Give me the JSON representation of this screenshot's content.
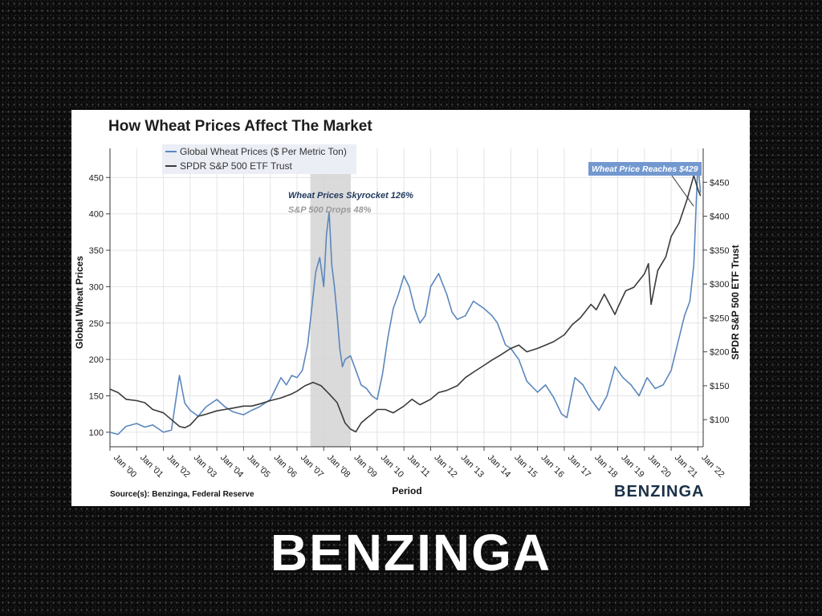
{
  "brand": {
    "footer_logo": "BENZINGA",
    "chart_logo": "BENZINGA"
  },
  "colors": {
    "wheat": "#5b87bd",
    "spy": "#3a3a3a",
    "shade": "#d3d3d3",
    "callout": "#7398cf"
  },
  "chart_data": {
    "type": "line",
    "title": "How Wheat Prices Affect The Market",
    "source": "Source(s): Benzinga, Federal Reserve",
    "xlabel": "Period",
    "ylabel_left": "Global Wheat Prices",
    "ylabel_right": "SPDR S&P 500 ETF Trust",
    "x_ticks": [
      "Jan '00",
      "Jan '01",
      "Jan '02",
      "Jan '03",
      "Jan '04",
      "Jan '05",
      "Jan '06",
      "Jan '07",
      "Jan '08",
      "Jan '09",
      "Jan '10",
      "Jan '11",
      "Jan '12",
      "Jan '13",
      "Jan '14",
      "Jan '15",
      "Jan '16",
      "Jan '17",
      "Jan '18",
      "Jan '19",
      "Jan '20",
      "Jan '21",
      "Jan '22"
    ],
    "y_left_ticks": [
      "100",
      "150",
      "200",
      "250",
      "300",
      "350",
      "400",
      "450"
    ],
    "y_right_ticks": [
      "$100",
      "$150",
      "$200",
      "$250",
      "$300",
      "$350",
      "$400",
      "$450"
    ],
    "y_left_range": [
      80,
      490
    ],
    "y_right_range": [
      60,
      500
    ],
    "x_range": [
      2000.0,
      2022.2
    ],
    "grid": true,
    "legend_position": "top-left",
    "shaded_period": [
      2007.5,
      2009.0
    ],
    "annotations": {
      "skyrocket": "Wheat Prices Skyrocket 126%",
      "drops": "S&P 500 Drops 48%",
      "callout": "Wheat Price Reaches $429"
    },
    "series": [
      {
        "name": "Global Wheat Prices ($ Per Metric Ton)",
        "axis": "left",
        "x": [
          2000,
          2000.3,
          2000.6,
          2001,
          2001.3,
          2001.6,
          2002,
          2002.3,
          2002.6,
          2002.8,
          2003,
          2003.3,
          2003.6,
          2004,
          2004.3,
          2004.6,
          2005,
          2005.3,
          2005.6,
          2006,
          2006.2,
          2006.4,
          2006.6,
          2006.8,
          2007,
          2007.2,
          2007.4,
          2007.55,
          2007.7,
          2007.85,
          2008,
          2008.1,
          2008.2,
          2008.3,
          2008.4,
          2008.5,
          2008.6,
          2008.7,
          2008.8,
          2009,
          2009.2,
          2009.4,
          2009.6,
          2009.8,
          2010,
          2010.2,
          2010.4,
          2010.6,
          2010.8,
          2011,
          2011.2,
          2011.4,
          2011.6,
          2011.8,
          2012,
          2012.3,
          2012.6,
          2012.8,
          2013,
          2013.3,
          2013.6,
          2014,
          2014.3,
          2014.5,
          2014.8,
          2015,
          2015.3,
          2015.6,
          2016,
          2016.3,
          2016.6,
          2016.9,
          2017.1,
          2017.4,
          2017.7,
          2018,
          2018.3,
          2018.6,
          2018.9,
          2019.2,
          2019.5,
          2019.8,
          2020.1,
          2020.4,
          2020.7,
          2021,
          2021.3,
          2021.5,
          2021.7,
          2021.85,
          2022,
          2022.1
        ],
        "values": [
          100,
          97,
          108,
          112,
          107,
          110,
          100,
          103,
          178,
          140,
          130,
          122,
          135,
          145,
          135,
          128,
          124,
          130,
          135,
          145,
          160,
          175,
          165,
          178,
          175,
          185,
          220,
          270,
          320,
          340,
          300,
          370,
          403,
          330,
          300,
          260,
          215,
          190,
          200,
          205,
          185,
          165,
          160,
          150,
          145,
          180,
          230,
          270,
          290,
          315,
          300,
          270,
          250,
          260,
          300,
          318,
          290,
          265,
          255,
          260,
          280,
          270,
          260,
          250,
          220,
          215,
          200,
          170,
          155,
          165,
          148,
          125,
          120,
          175,
          165,
          145,
          130,
          150,
          190,
          175,
          165,
          150,
          175,
          160,
          165,
          185,
          230,
          260,
          280,
          330,
          470,
          429
        ],
        "color": "#5b87bd"
      },
      {
        "name": "SPDR S&P 500 ETF Trust",
        "axis": "right",
        "x": [
          2000,
          2000.3,
          2000.6,
          2001,
          2001.3,
          2001.6,
          2002,
          2002.3,
          2002.6,
          2002.8,
          2003,
          2003.3,
          2003.6,
          2004,
          2004.3,
          2004.6,
          2005,
          2005.3,
          2005.6,
          2006,
          2006.4,
          2006.8,
          2007,
          2007.3,
          2007.6,
          2007.9,
          2008.2,
          2008.5,
          2008.8,
          2009,
          2009.2,
          2009.4,
          2009.6,
          2009.8,
          2010,
          2010.3,
          2010.6,
          2011,
          2011.3,
          2011.6,
          2012,
          2012.3,
          2012.6,
          2013,
          2013.3,
          2013.6,
          2014,
          2014.3,
          2014.6,
          2015,
          2015.3,
          2015.6,
          2016,
          2016.3,
          2016.6,
          2017,
          2017.3,
          2017.6,
          2018,
          2018.2,
          2018.5,
          2018.9,
          2019,
          2019.3,
          2019.6,
          2020,
          2020.15,
          2020.25,
          2020.5,
          2020.8,
          2021,
          2021.3,
          2021.6,
          2021.85,
          2022,
          2022.1
        ],
        "values": [
          145,
          140,
          130,
          128,
          125,
          115,
          110,
          100,
          90,
          88,
          92,
          105,
          108,
          113,
          115,
          117,
          120,
          120,
          123,
          128,
          132,
          138,
          142,
          150,
          155,
          150,
          138,
          125,
          95,
          86,
          82,
          95,
          102,
          108,
          115,
          115,
          110,
          120,
          130,
          122,
          130,
          140,
          143,
          150,
          162,
          170,
          180,
          188,
          195,
          205,
          210,
          200,
          205,
          210,
          215,
          225,
          240,
          250,
          270,
          262,
          285,
          255,
          265,
          290,
          295,
          315,
          330,
          270,
          320,
          340,
          370,
          390,
          425,
          460,
          440,
          430
        ],
        "color": "#3a3a3a"
      }
    ]
  }
}
